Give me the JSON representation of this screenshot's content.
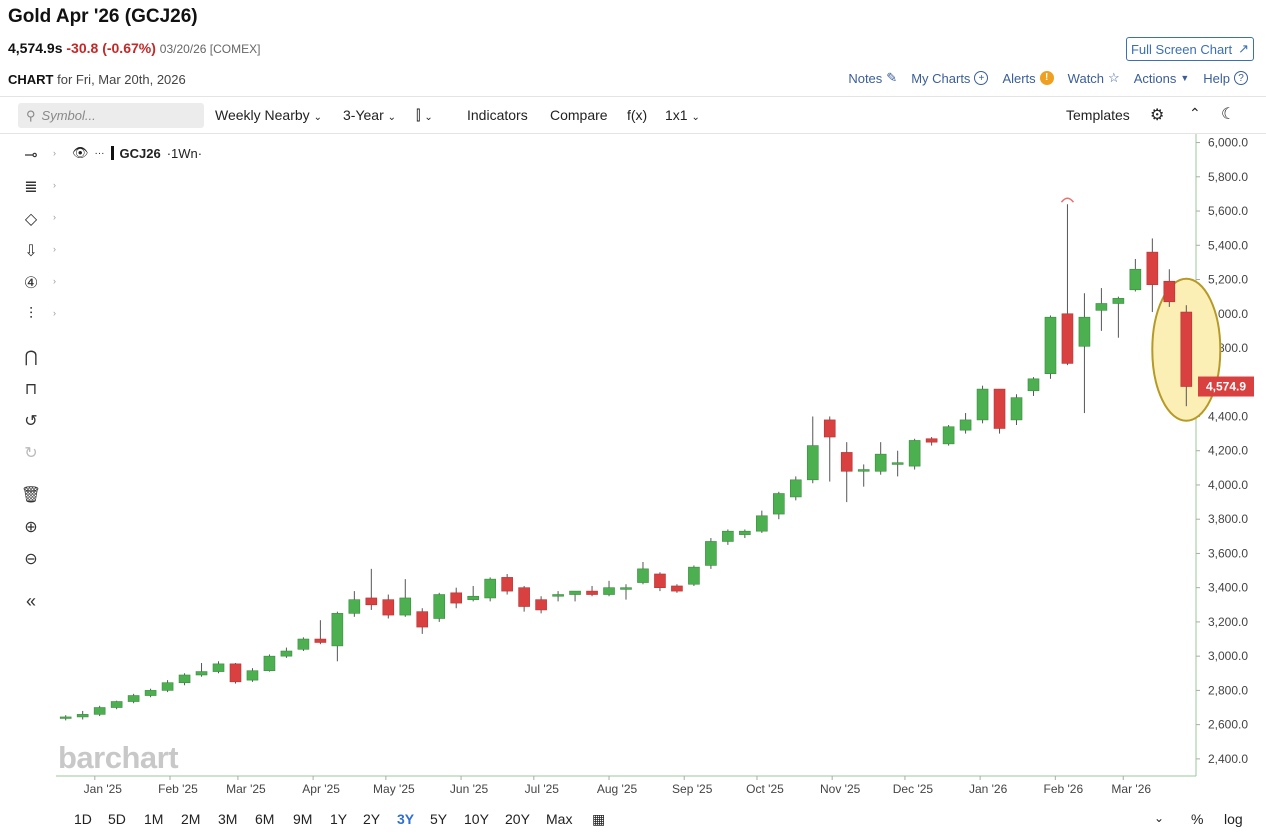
{
  "header": {
    "title": "Gold Apr '26 (GCJ26)",
    "last": "4,574.9s",
    "change": "-30.8 (-0.67%)",
    "meta": "03/20/26 [COMEX]",
    "full_screen": "Full Screen Chart",
    "chart_label": "CHART",
    "chart_for": "for Fri, Mar 20th, 2026",
    "notes": "Notes",
    "my_charts": "My Charts",
    "alerts": "Alerts",
    "watch": "Watch",
    "actions": "Actions",
    "help": "Help"
  },
  "toolbar": {
    "search_placeholder": "Symbol...",
    "weekly": "Weekly Nearby",
    "range": "3-Year",
    "indicators": "Indicators",
    "compare": "Compare",
    "fx": "f(x)",
    "layout": "1x1",
    "templates": "Templates"
  },
  "legend": {
    "symbol": "GCJ26",
    "interval": "·1Wn·"
  },
  "watermark": "barchart",
  "timeframes": [
    "1D",
    "5D",
    "1M",
    "2M",
    "3M",
    "6M",
    "9M",
    "1Y",
    "2Y",
    "3Y",
    "5Y",
    "10Y",
    "20Y",
    "Max"
  ],
  "active_timeframe": "3Y",
  "bottom_right": {
    "pct": "%",
    "log": "log"
  },
  "colors": {
    "up": "#4caf50",
    "down": "#d94040",
    "price_tag": "#d94040",
    "highlight_fill": "#fbefb6",
    "highlight_stroke": "#b59a26",
    "link": "#3b5e9a"
  },
  "chart_data": {
    "type": "candlestick",
    "last_price_label": "4,574.9",
    "ylim": [
      2300,
      6050
    ],
    "yticks": [
      "2,400.0",
      "2,600.0",
      "2,800.0",
      "3,000.0",
      "3,200.0",
      "3,400.0",
      "3,600.0",
      "3,800.0",
      "4,000.0",
      "4,200.0",
      "4,400.0",
      "4,600.0",
      "4,800.0",
      "5,000.0",
      "5,200.0",
      "5,400.0",
      "5,600.0",
      "5,800.0",
      "6,000.0"
    ],
    "xlabels": [
      "Jan '25",
      "Feb '25",
      "Mar '25",
      "Apr '25",
      "May '25",
      "Jun '25",
      "Jul '25",
      "Aug '25",
      "Sep '25",
      "Oct '25",
      "Nov '25",
      "Dec '25",
      "Jan '26",
      "Feb '26",
      "Mar '26"
    ],
    "candles": [
      {
        "date": "2024-12-20",
        "o": 2640,
        "h": 2655,
        "l": 2625,
        "c": 2645
      },
      {
        "date": "2024-12-27",
        "o": 2645,
        "h": 2680,
        "l": 2630,
        "c": 2660
      },
      {
        "date": "2025-01-03",
        "o": 2660,
        "h": 2710,
        "l": 2650,
        "c": 2700
      },
      {
        "date": "2025-01-10",
        "o": 2700,
        "h": 2740,
        "l": 2690,
        "c": 2735
      },
      {
        "date": "2025-01-17",
        "o": 2735,
        "h": 2780,
        "l": 2725,
        "c": 2770
      },
      {
        "date": "2025-01-24",
        "o": 2770,
        "h": 2810,
        "l": 2760,
        "c": 2800
      },
      {
        "date": "2025-01-31",
        "o": 2800,
        "h": 2860,
        "l": 2790,
        "c": 2845
      },
      {
        "date": "2025-02-07",
        "o": 2845,
        "h": 2900,
        "l": 2830,
        "c": 2890
      },
      {
        "date": "2025-02-14",
        "o": 2890,
        "h": 2960,
        "l": 2880,
        "c": 2910
      },
      {
        "date": "2025-02-21",
        "o": 2910,
        "h": 2970,
        "l": 2900,
        "c": 2955
      },
      {
        "date": "2025-02-28",
        "o": 2955,
        "h": 2960,
        "l": 2840,
        "c": 2850
      },
      {
        "date": "2025-03-07",
        "o": 2860,
        "h": 2930,
        "l": 2850,
        "c": 2915
      },
      {
        "date": "2025-03-14",
        "o": 2915,
        "h": 3010,
        "l": 2910,
        "c": 3000
      },
      {
        "date": "2025-03-21",
        "o": 3000,
        "h": 3050,
        "l": 2990,
        "c": 3030
      },
      {
        "date": "2025-03-28",
        "o": 3040,
        "h": 3110,
        "l": 3030,
        "c": 3100
      },
      {
        "date": "2025-04-04",
        "o": 3100,
        "h": 3210,
        "l": 3070,
        "c": 3080
      },
      {
        "date": "2025-04-11",
        "o": 3060,
        "h": 3260,
        "l": 2970,
        "c": 3250
      },
      {
        "date": "2025-04-18",
        "o": 3250,
        "h": 3380,
        "l": 3230,
        "c": 3330
      },
      {
        "date": "2025-04-25",
        "o": 3340,
        "h": 3510,
        "l": 3270,
        "c": 3300
      },
      {
        "date": "2025-05-02",
        "o": 3330,
        "h": 3360,
        "l": 3220,
        "c": 3240
      },
      {
        "date": "2025-05-09",
        "o": 3240,
        "h": 3450,
        "l": 3230,
        "c": 3340
      },
      {
        "date": "2025-05-16",
        "o": 3260,
        "h": 3280,
        "l": 3130,
        "c": 3170
      },
      {
        "date": "2025-05-23",
        "o": 3220,
        "h": 3370,
        "l": 3200,
        "c": 3360
      },
      {
        "date": "2025-05-30",
        "o": 3370,
        "h": 3400,
        "l": 3280,
        "c": 3310
      },
      {
        "date": "2025-06-06",
        "o": 3330,
        "h": 3410,
        "l": 3320,
        "c": 3350
      },
      {
        "date": "2025-06-13",
        "o": 3340,
        "h": 3460,
        "l": 3320,
        "c": 3450
      },
      {
        "date": "2025-06-20",
        "o": 3460,
        "h": 3480,
        "l": 3360,
        "c": 3380
      },
      {
        "date": "2025-06-27",
        "o": 3400,
        "h": 3410,
        "l": 3260,
        "c": 3290
      },
      {
        "date": "2025-07-04",
        "o": 3330,
        "h": 3350,
        "l": 3250,
        "c": 3270
      },
      {
        "date": "2025-07-11",
        "o": 3350,
        "h": 3380,
        "l": 3320,
        "c": 3360
      },
      {
        "date": "2025-07-18",
        "o": 3360,
        "h": 3380,
        "l": 3320,
        "c": 3380
      },
      {
        "date": "2025-07-25",
        "o": 3380,
        "h": 3410,
        "l": 3350,
        "c": 3360
      },
      {
        "date": "2025-08-01",
        "o": 3360,
        "h": 3440,
        "l": 3350,
        "c": 3400
      },
      {
        "date": "2025-08-08",
        "o": 3390,
        "h": 3420,
        "l": 3330,
        "c": 3400
      },
      {
        "date": "2025-08-15",
        "o": 3430,
        "h": 3550,
        "l": 3420,
        "c": 3510
      },
      {
        "date": "2025-08-22",
        "o": 3480,
        "h": 3490,
        "l": 3380,
        "c": 3400
      },
      {
        "date": "2025-08-29",
        "o": 3410,
        "h": 3420,
        "l": 3370,
        "c": 3380
      },
      {
        "date": "2025-09-05",
        "o": 3420,
        "h": 3530,
        "l": 3410,
        "c": 3520
      },
      {
        "date": "2025-09-12",
        "o": 3530,
        "h": 3690,
        "l": 3510,
        "c": 3670
      },
      {
        "date": "2025-09-19",
        "o": 3670,
        "h": 3740,
        "l": 3650,
        "c": 3730
      },
      {
        "date": "2025-09-26",
        "o": 3710,
        "h": 3740,
        "l": 3690,
        "c": 3730
      },
      {
        "date": "2025-10-03",
        "o": 3730,
        "h": 3850,
        "l": 3720,
        "c": 3820
      },
      {
        "date": "2025-10-10",
        "o": 3830,
        "h": 3960,
        "l": 3800,
        "c": 3950
      },
      {
        "date": "2025-10-17",
        "o": 3930,
        "h": 4050,
        "l": 3910,
        "c": 4030
      },
      {
        "date": "2025-10-24",
        "o": 4030,
        "h": 4400,
        "l": 4010,
        "c": 4230
      },
      {
        "date": "2025-10-31",
        "o": 4380,
        "h": 4400,
        "l": 4020,
        "c": 4280
      },
      {
        "date": "2025-11-07",
        "o": 4190,
        "h": 4250,
        "l": 3900,
        "c": 4080
      },
      {
        "date": "2025-11-14",
        "o": 4080,
        "h": 4120,
        "l": 3990,
        "c": 4090
      },
      {
        "date": "2025-11-21",
        "o": 4080,
        "h": 4250,
        "l": 4060,
        "c": 4180
      },
      {
        "date": "2025-11-28",
        "o": 4120,
        "h": 4200,
        "l": 4050,
        "c": 4130
      },
      {
        "date": "2025-12-05",
        "o": 4110,
        "h": 4270,
        "l": 4090,
        "c": 4260
      },
      {
        "date": "2025-12-12",
        "o": 4270,
        "h": 4280,
        "l": 4230,
        "c": 4250
      },
      {
        "date": "2025-12-19",
        "o": 4240,
        "h": 4350,
        "l": 4230,
        "c": 4340
      },
      {
        "date": "2025-12-26",
        "o": 4320,
        "h": 4420,
        "l": 4300,
        "c": 4380
      },
      {
        "date": "2026-01-02",
        "o": 4380,
        "h": 4580,
        "l": 4360,
        "c": 4560
      },
      {
        "date": "2026-01-09",
        "o": 4560,
        "h": 4560,
        "l": 4300,
        "c": 4330
      },
      {
        "date": "2026-01-16",
        "o": 4380,
        "h": 4530,
        "l": 4350,
        "c": 4510
      },
      {
        "date": "2026-01-23",
        "o": 4550,
        "h": 4630,
        "l": 4520,
        "c": 4620
      },
      {
        "date": "2026-01-30",
        "o": 4650,
        "h": 4990,
        "l": 4620,
        "c": 4980
      },
      {
        "date": "2026-02-06",
        "o": 5000,
        "h": 5640,
        "l": 4700,
        "c": 4710
      },
      {
        "date": "2026-02-13",
        "o": 4810,
        "h": 5120,
        "l": 4420,
        "c": 4980
      },
      {
        "date": "2026-02-20",
        "o": 5020,
        "h": 5150,
        "l": 4900,
        "c": 5060
      },
      {
        "date": "2026-02-27",
        "o": 5060,
        "h": 5100,
        "l": 4860,
        "c": 5090
      },
      {
        "date": "2026-03-06",
        "o": 5140,
        "h": 5320,
        "l": 5130,
        "c": 5260
      },
      {
        "date": "2026-03-13",
        "o": 5360,
        "h": 5440,
        "l": 5010,
        "c": 5170
      },
      {
        "date": "2026-03-20",
        "o": 5190,
        "h": 5260,
        "l": 5040,
        "c": 5070
      },
      {
        "date": "2026-03-27",
        "o": 5010,
        "h": 5050,
        "l": 4460,
        "c": 4575
      }
    ],
    "highlighted_candle_date": "2026-03-27",
    "grid": false,
    "log_scale": false
  }
}
